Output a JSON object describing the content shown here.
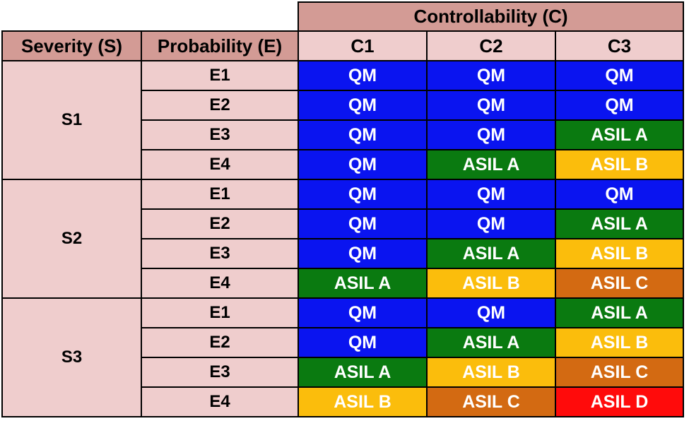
{
  "table": {
    "controllability_header": "Controllability (C)",
    "severity_header": "Severity (S)",
    "probability_header": "Probability (E)",
    "controllability_levels": [
      "C1",
      "C2",
      "C3"
    ],
    "severity_groups": [
      {
        "label": "S1",
        "rows": [
          {
            "probability": "E1",
            "results": [
              "QM",
              "QM",
              "QM"
            ]
          },
          {
            "probability": "E2",
            "results": [
              "QM",
              "QM",
              "QM"
            ]
          },
          {
            "probability": "E3",
            "results": [
              "QM",
              "QM",
              "ASIL A"
            ]
          },
          {
            "probability": "E4",
            "results": [
              "QM",
              "ASIL A",
              "ASIL B"
            ]
          }
        ]
      },
      {
        "label": "S2",
        "rows": [
          {
            "probability": "E1",
            "results": [
              "QM",
              "QM",
              "QM"
            ]
          },
          {
            "probability": "E2",
            "results": [
              "QM",
              "QM",
              "ASIL A"
            ]
          },
          {
            "probability": "E3",
            "results": [
              "QM",
              "ASIL A",
              "ASIL B"
            ]
          },
          {
            "probability": "E4",
            "results": [
              "ASIL A",
              "ASIL B",
              "ASIL C"
            ]
          }
        ]
      },
      {
        "label": "S3",
        "rows": [
          {
            "probability": "E1",
            "results": [
              "QM",
              "QM",
              "ASIL A"
            ]
          },
          {
            "probability": "E2",
            "results": [
              "QM",
              "ASIL A",
              "ASIL B"
            ]
          },
          {
            "probability": "E3",
            "results": [
              "ASIL A",
              "ASIL B",
              "ASIL C"
            ]
          },
          {
            "probability": "E4",
            "results": [
              "ASIL B",
              "ASIL C",
              "ASIL D"
            ]
          }
        ]
      }
    ]
  },
  "colors": {
    "header_bg": "#d39b95",
    "label_bg": "#efcdcd",
    "QM": "#0a14f0",
    "ASIL A": "#0a7a10",
    "ASIL B": "#fbbd0c",
    "ASIL C": "#d36a12",
    "ASIL D": "#ff0b0b"
  }
}
